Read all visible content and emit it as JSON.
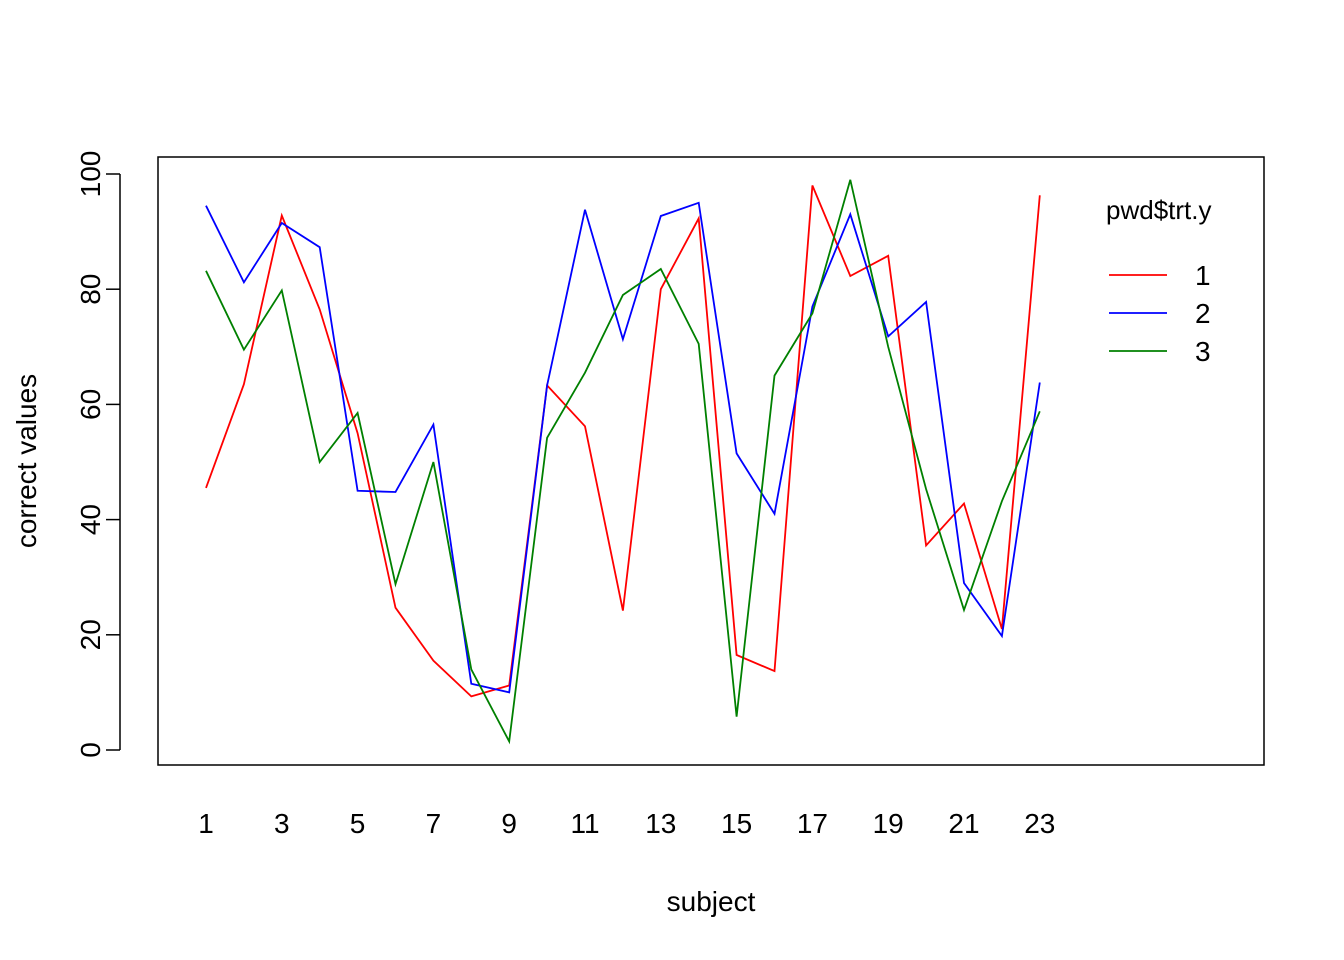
{
  "chart_data": {
    "type": "line",
    "xlabel": "subject",
    "ylabel": "correct values",
    "xlim": [
      1,
      30
    ],
    "ylim": [
      0,
      100
    ],
    "x_ticks": [
      "1",
      "3",
      "5",
      "7",
      "9",
      "11",
      "13",
      "15",
      "17",
      "19",
      "21",
      "23"
    ],
    "y_ticks": [
      "0",
      "20",
      "40",
      "60",
      "80",
      "100"
    ],
    "grid": false,
    "legend": {
      "title": "pwd$trt.y",
      "position": "top-right",
      "entries": [
        "1",
        "2",
        "3"
      ]
    },
    "x": [
      1,
      2,
      3,
      4,
      5,
      6,
      7,
      8,
      9,
      10,
      11,
      12,
      13,
      14,
      15,
      16,
      17,
      18,
      19,
      20,
      21,
      22,
      23
    ],
    "series": [
      {
        "name": "1",
        "color": "#ff0000",
        "values": [
          45.5,
          63.5,
          92.8,
          76.5,
          55.0,
          24.7,
          15.5,
          9.3,
          11.2,
          63.3,
          56.2,
          24.2,
          80.0,
          92.3,
          16.5,
          13.7,
          98.0,
          82.3,
          85.8,
          35.5,
          42.8,
          21.0,
          96.3
        ]
      },
      {
        "name": "2",
        "color": "#0000ff",
        "values": [
          94.5,
          81.2,
          91.5,
          87.3,
          45.0,
          44.8,
          56.5,
          11.5,
          10.0,
          63.3,
          93.8,
          71.3,
          92.7,
          95.0,
          51.5,
          41.0,
          77.0,
          93.0,
          71.8,
          77.8,
          29.0,
          19.8,
          63.8
        ]
      },
      {
        "name": "3",
        "color": "#008000",
        "values": [
          83.2,
          69.5,
          79.8,
          50.0,
          58.5,
          28.8,
          50.0,
          14.0,
          1.5,
          54.2,
          65.5,
          79.0,
          83.5,
          70.5,
          5.8,
          65.0,
          75.8,
          99.0,
          70.0,
          45.3,
          24.3,
          43.2,
          58.8
        ]
      }
    ]
  }
}
